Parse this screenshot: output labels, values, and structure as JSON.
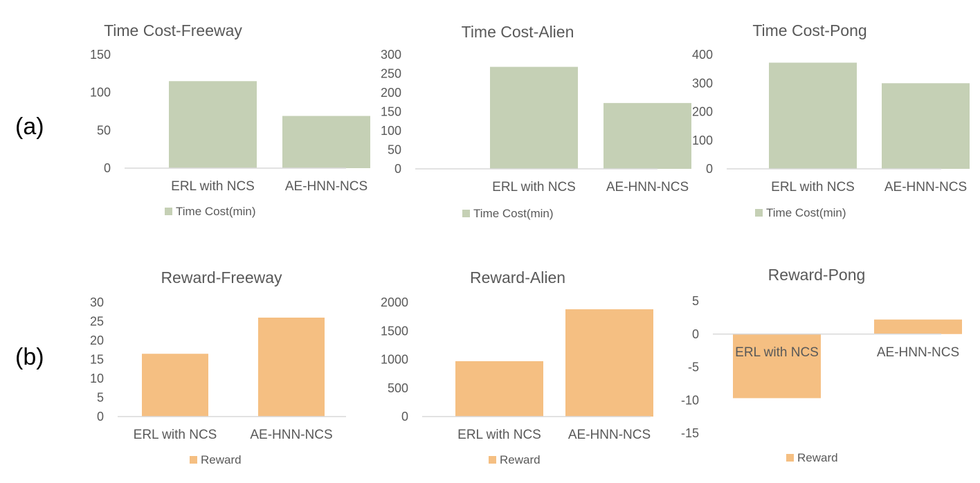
{
  "row_labels": [
    "(a)",
    "(b)"
  ],
  "chart_data": [
    {
      "type": "bar",
      "title": "Time Cost-Freeway",
      "categories": [
        "ERL with NCS",
        "AE-HNN-NCS"
      ],
      "series": [
        {
          "name": "Time Cost(min)",
          "values": [
            115,
            69
          ]
        }
      ],
      "ylim": [
        0,
        150
      ],
      "yticks": [
        0,
        50,
        100,
        150
      ],
      "color": "#c5d0b5",
      "legend": "bottom",
      "grid": false
    },
    {
      "type": "bar",
      "title": "Time Cost-Alien",
      "categories": [
        "ERL with NCS",
        "AE-HNN-NCS"
      ],
      "series": [
        {
          "name": "Time Cost(min)",
          "values": [
            268,
            173
          ]
        }
      ],
      "ylim": [
        0,
        300
      ],
      "yticks": [
        0,
        50,
        100,
        150,
        200,
        250,
        300
      ],
      "color": "#c5d0b5",
      "legend": "bottom",
      "grid": false
    },
    {
      "type": "bar",
      "title": "Time Cost-Pong",
      "categories": [
        "ERL with NCS",
        "AE-HNN-NCS"
      ],
      "series": [
        {
          "name": "Time Cost(min)",
          "values": [
            372,
            300
          ]
        }
      ],
      "ylim": [
        0,
        400
      ],
      "yticks": [
        0,
        100,
        200,
        300,
        400
      ],
      "color": "#c5d0b5",
      "legend": "bottom",
      "grid": false
    },
    {
      "type": "bar",
      "title": "Reward-Freeway",
      "categories": [
        "ERL with NCS",
        "AE-HNN-NCS"
      ],
      "series": [
        {
          "name": "Reward",
          "values": [
            16.5,
            26
          ]
        }
      ],
      "ylim": [
        0,
        30
      ],
      "yticks": [
        0,
        5,
        10,
        15,
        20,
        25,
        30
      ],
      "color": "#f5bf82",
      "legend": "bottom",
      "grid": false
    },
    {
      "type": "bar",
      "title": "Reward-Alien",
      "categories": [
        "ERL with NCS",
        "AE-HNN-NCS"
      ],
      "series": [
        {
          "name": "Reward",
          "values": [
            970,
            1880
          ]
        }
      ],
      "ylim": [
        0,
        2000
      ],
      "yticks": [
        0,
        500,
        1000,
        1500,
        2000
      ],
      "color": "#f5bf82",
      "legend": "bottom",
      "grid": false
    },
    {
      "type": "bar",
      "title": "Reward-Pong",
      "categories": [
        "ERL with NCS",
        "AE-HNN-NCS"
      ],
      "series": [
        {
          "name": "Reward",
          "values": [
            -9.7,
            2.2
          ]
        }
      ],
      "ylim": [
        -15,
        5
      ],
      "yticks": [
        -15,
        -10,
        -5,
        0,
        5
      ],
      "color": "#f5bf82",
      "legend": "bottom",
      "grid": false
    }
  ]
}
